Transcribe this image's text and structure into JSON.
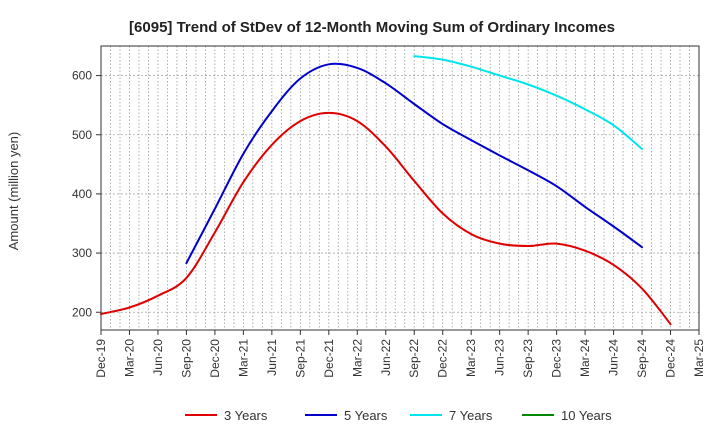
{
  "chart_data": {
    "type": "line",
    "title": "[6095]  Trend of StDev of 12-Month Moving Sum of Ordinary Incomes",
    "xlabel": "",
    "ylabel": "Amount (million yen)",
    "ylim": [
      170,
      650
    ],
    "yticks": [
      200,
      300,
      400,
      500,
      600
    ],
    "grid": true,
    "legend_position": "bottom",
    "categories": [
      "Dec-19",
      "Mar-20",
      "Jun-20",
      "Sep-20",
      "Dec-20",
      "Mar-21",
      "Jun-21",
      "Sep-21",
      "Dec-21",
      "Mar-22",
      "Jun-22",
      "Sep-22",
      "Dec-22",
      "Mar-23",
      "Jun-23",
      "Sep-23",
      "Dec-23",
      "Mar-24",
      "Jun-24",
      "Sep-24",
      "Dec-24",
      "Mar-25"
    ],
    "series": [
      {
        "name": "3 Years",
        "color": "#e00000",
        "values": [
          197,
          208,
          228,
          258,
          335,
          420,
          483,
          523,
          537,
          523,
          480,
          422,
          367,
          332,
          316,
          312,
          316,
          304,
          280,
          240,
          180,
          null
        ]
      },
      {
        "name": "5 Years",
        "color": "#0000cc",
        "values": [
          null,
          null,
          null,
          283,
          375,
          468,
          540,
          595,
          619,
          613,
          587,
          552,
          518,
          491,
          465,
          440,
          413,
          378,
          345,
          310,
          null,
          null
        ]
      },
      {
        "name": "7 Years",
        "color": "#00e5ee",
        "values": [
          null,
          null,
          null,
          null,
          null,
          null,
          null,
          null,
          null,
          null,
          null,
          633,
          627,
          615,
          600,
          585,
          566,
          543,
          516,
          476,
          null,
          null
        ]
      },
      {
        "name": "10 Years",
        "color": "#008800",
        "values": [
          null,
          null,
          null,
          null,
          null,
          null,
          null,
          null,
          null,
          null,
          null,
          null,
          null,
          null,
          null,
          null,
          null,
          null,
          null,
          null,
          null,
          null
        ]
      }
    ]
  }
}
